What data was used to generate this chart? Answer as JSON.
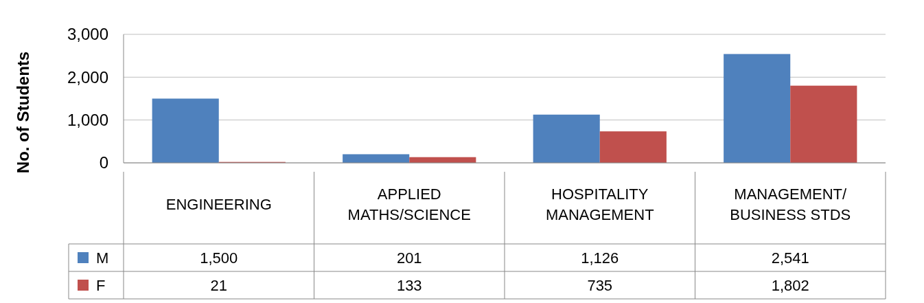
{
  "chart_data": {
    "type": "bar",
    "ylabel": "No. of Students",
    "categories": [
      "ENGINEERING",
      "APPLIED MATHS/SCIENCE",
      "HOSPITALITY MANAGEMENT",
      "MANAGEMENT/ BUSINESS STDS"
    ],
    "series": [
      {
        "name": "M",
        "color": "#4f81bd",
        "values": [
          1500,
          201,
          1126,
          2541
        ],
        "value_labels": [
          "1,500",
          "201",
          "1,126",
          "2,541"
        ]
      },
      {
        "name": "F",
        "color": "#c0504d",
        "values": [
          21,
          133,
          735,
          1802
        ],
        "value_labels": [
          "21",
          "133",
          "735",
          "1,802"
        ]
      }
    ],
    "ylim": [
      0,
      3000
    ],
    "yticks": [
      0,
      {
        "value": 1000,
        "label": "1,000"
      },
      {
        "value": 2000,
        "label": "2,000"
      },
      {
        "value": 3000,
        "label": "3,000"
      }
    ],
    "grid": "y",
    "legend": "bottom left"
  }
}
